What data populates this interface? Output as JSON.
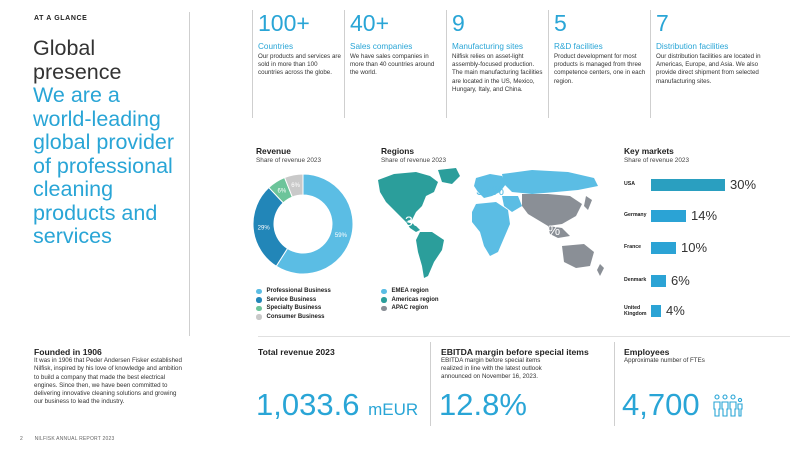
{
  "header": {
    "kicker": "AT A GLANCE"
  },
  "headline": {
    "line1": "Global",
    "line2": "presence",
    "tagline": "We are a world-leading global provider of professional cleaning products and services"
  },
  "stats": [
    {
      "value": "100+",
      "label": "Countries",
      "text": "Our products and services are sold in more than 100 countries across the globe."
    },
    {
      "value": "40+",
      "label": "Sales companies",
      "text": "We have sales companies in more than 40 countries around the world."
    },
    {
      "value": "9",
      "label": "Manufacturing sites",
      "text": "Nilfisk relies on asset-light assembly-focused production. The main manufacturing facilities are located in the US, Mexico, Hungary, Italy, and China."
    },
    {
      "value": "5",
      "label": "R&D facilities",
      "text": "Product development for most products is managed from three competence centers, one in each region."
    },
    {
      "value": "7",
      "label": "Distribution facilities",
      "text": "Our distribution facilities are located in Americas, Europe, and Asia. We also provide direct shipment from selected manufacturing sites."
    }
  ],
  "revenue": {
    "title": "Revenue",
    "subtitle": "Share of revenue 2023",
    "legend": [
      "Professional Business",
      "Service Business",
      "Specialty Business",
      "Consumer Business"
    ]
  },
  "regions": {
    "title": "Regions",
    "subtitle": "Share of revenue 2023",
    "legend": [
      "EMEA region",
      "Americas region",
      "APAC region"
    ],
    "labels": {
      "americas": "35%",
      "emea": "57%",
      "apac": "8%"
    }
  },
  "key_markets": {
    "title": "Key markets",
    "subtitle": "Share of revenue 2023",
    "rows": [
      {
        "country": "USA",
        "value": "30%"
      },
      {
        "country": "Germany",
        "value": "14%"
      },
      {
        "country": "France",
        "value": "10%"
      },
      {
        "country": "Denmark",
        "value": "6%"
      },
      {
        "country": "United Kingdom",
        "value": "4%"
      }
    ]
  },
  "chart_data": [
    {
      "type": "pie",
      "title": "Revenue",
      "subtitle": "Share of revenue 2023",
      "categories": [
        "Professional Business",
        "Service Business",
        "Specialty Business",
        "Consumer Business"
      ],
      "values": [
        59,
        29,
        6,
        6
      ],
      "labels": [
        "59%",
        "29%",
        "6%",
        "6%"
      ],
      "colors": [
        "#5bbde4",
        "#2286b8",
        "#6cc49a",
        "#c9c9c9"
      ]
    },
    {
      "type": "bar",
      "title": "Key markets",
      "subtitle": "Share of revenue 2023",
      "categories": [
        "USA",
        "Germany",
        "France",
        "Denmark",
        "United Kingdom"
      ],
      "values": [
        30,
        14,
        10,
        6,
        4
      ],
      "colors": [
        "#2a9fc0",
        "#2ba3d5",
        "#2ba3d5",
        "#2ba3d5",
        "#2ba3d5"
      ]
    }
  ],
  "colors": {
    "accent": "#29a5d6",
    "emea": "#5bbde4",
    "americas": "#2b9e9b",
    "apac": "#8a8f96",
    "other_land": "#d4d4d4"
  },
  "kpis": {
    "founded": {
      "title": "Founded in 1906",
      "text": "It was in 1906 that Peder Andersen Fisker established Nilfisk, inspired by his love of knowledge and ambition to build a company that made the best electrical engines. Since then, we have been committed to delivering innovative cleaning solutions and growing our business to lead the industry."
    },
    "revenue": {
      "title": "Total revenue 2023",
      "value": "1,033.6",
      "unit": "mEUR"
    },
    "ebitda": {
      "title": "EBITDA margin before special items",
      "text": "EBITDA margin before special items realized in line with the latest outlook announced on November 16, 2023.",
      "value": "12.8%"
    },
    "employees": {
      "title": "Employees",
      "text": "Approximate number of FTEs",
      "value": "4,700",
      "icon": "people-icon"
    }
  },
  "footer": {
    "page": "2",
    "report": "NILFISK ANNUAL REPORT 2023"
  }
}
